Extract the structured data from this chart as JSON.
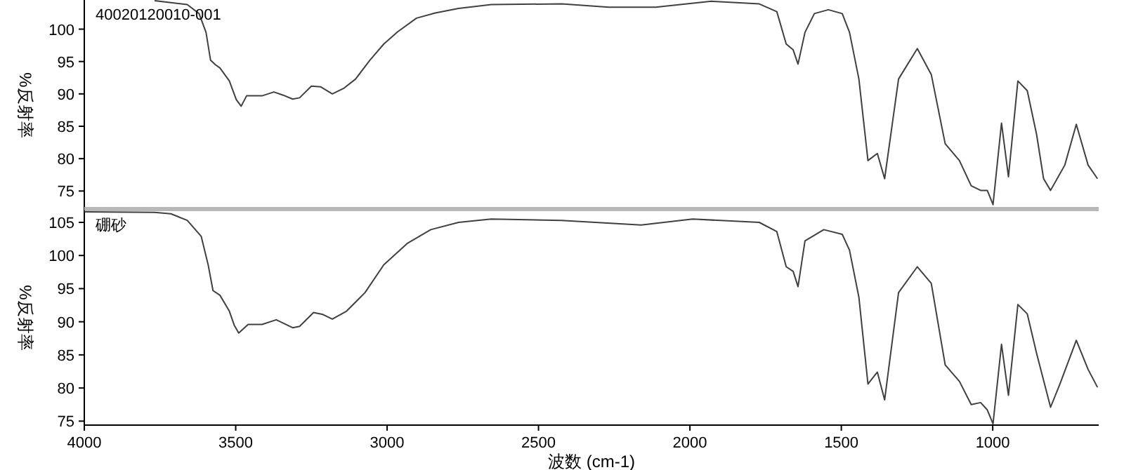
{
  "chart_data": [
    {
      "type": "line",
      "ylabel": "%反射率",
      "xlim": [
        4000,
        650
      ],
      "ylim": [
        72,
        104.5
      ],
      "yticks": [
        75,
        80,
        85,
        90,
        95,
        100
      ],
      "tick_labels": "y",
      "series": [
        {
          "name": "40020120010-001",
          "color": "#404040",
          "x": [
            3768,
            3660,
            3621,
            3598,
            3583,
            3567,
            3552,
            3521,
            3498,
            3482,
            3464,
            3413,
            3374,
            3343,
            3312,
            3289,
            3250,
            3220,
            3181,
            3142,
            3104,
            3057,
            3011,
            2965,
            2903,
            2841,
            2764,
            2656,
            2424,
            2268,
            2113,
            1929,
            1771,
            1713,
            1682,
            1659,
            1643,
            1620,
            1589,
            1543,
            1497,
            1473,
            1442,
            1412,
            1381,
            1357,
            1311,
            1249,
            1203,
            1157,
            1110,
            1071,
            1040,
            1018,
            999,
            971,
            948,
            917,
            886,
            855,
            832,
            809,
            762,
            724,
            685,
            654
          ],
          "values": [
            104.4,
            103.8,
            102.4,
            99.5,
            95.2,
            94.5,
            94.0,
            92.0,
            89.1,
            88.1,
            89.7,
            89.7,
            90.3,
            89.8,
            89.2,
            89.4,
            91.2,
            91.1,
            90.0,
            90.9,
            92.3,
            95.2,
            97.7,
            99.6,
            101.7,
            102.5,
            103.2,
            103.8,
            103.9,
            103.4,
            103.4,
            104.3,
            103.9,
            102.7,
            97.7,
            96.8,
            94.6,
            99.5,
            102.4,
            103.0,
            102.4,
            99.5,
            92.3,
            79.7,
            80.8,
            76.9,
            92.3,
            97.0,
            93.0,
            82.3,
            79.7,
            75.8,
            75.1,
            75.1,
            72.9,
            85.5,
            77.2,
            92.0,
            90.5,
            83.7,
            76.9,
            75.1,
            79.0,
            85.3,
            79.0,
            76.9
          ]
        }
      ]
    },
    {
      "type": "line",
      "ylabel": "%反射率",
      "xlabel": "波数 (cm-1)",
      "xlim": [
        4000,
        650
      ],
      "ylim": [
        74.4,
        106.8
      ],
      "xticks": [
        4000,
        3500,
        3000,
        2500,
        2000,
        1500,
        1000
      ],
      "yticks": [
        75,
        80,
        85,
        90,
        95,
        100,
        105
      ],
      "series": [
        {
          "name": "硼砂",
          "color": "#404040",
          "x": [
            4000,
            3768,
            3714,
            3660,
            3614,
            3591,
            3575,
            3552,
            3521,
            3505,
            3490,
            3459,
            3413,
            3366,
            3312,
            3289,
            3243,
            3212,
            3181,
            3134,
            3073,
            3011,
            2934,
            2856,
            2764,
            2656,
            2424,
            2161,
            1991,
            1771,
            1713,
            1682,
            1659,
            1643,
            1620,
            1558,
            1497,
            1473,
            1442,
            1412,
            1381,
            1357,
            1311,
            1249,
            1203,
            1157,
            1110,
            1071,
            1040,
            1018,
            999,
            971,
            948,
            917,
            886,
            855,
            809,
            778,
            724,
            685,
            654
          ],
          "values": [
            106.6,
            106.5,
            106.3,
            105.3,
            102.9,
            98.6,
            94.7,
            94.0,
            91.6,
            89.5,
            88.3,
            89.6,
            89.6,
            90.3,
            89.1,
            89.3,
            91.4,
            91.1,
            90.4,
            91.6,
            94.4,
            98.6,
            101.8,
            103.9,
            105.0,
            105.5,
            105.3,
            104.6,
            105.5,
            105.0,
            103.6,
            98.3,
            97.6,
            95.3,
            102.2,
            103.9,
            103.2,
            100.8,
            93.7,
            80.6,
            82.4,
            78.2,
            94.4,
            98.3,
            95.8,
            83.5,
            81.0,
            77.5,
            77.8,
            76.7,
            74.6,
            86.6,
            78.9,
            92.6,
            91.2,
            85.2,
            77.1,
            80.6,
            87.2,
            82.8,
            80.1
          ]
        }
      ]
    }
  ]
}
